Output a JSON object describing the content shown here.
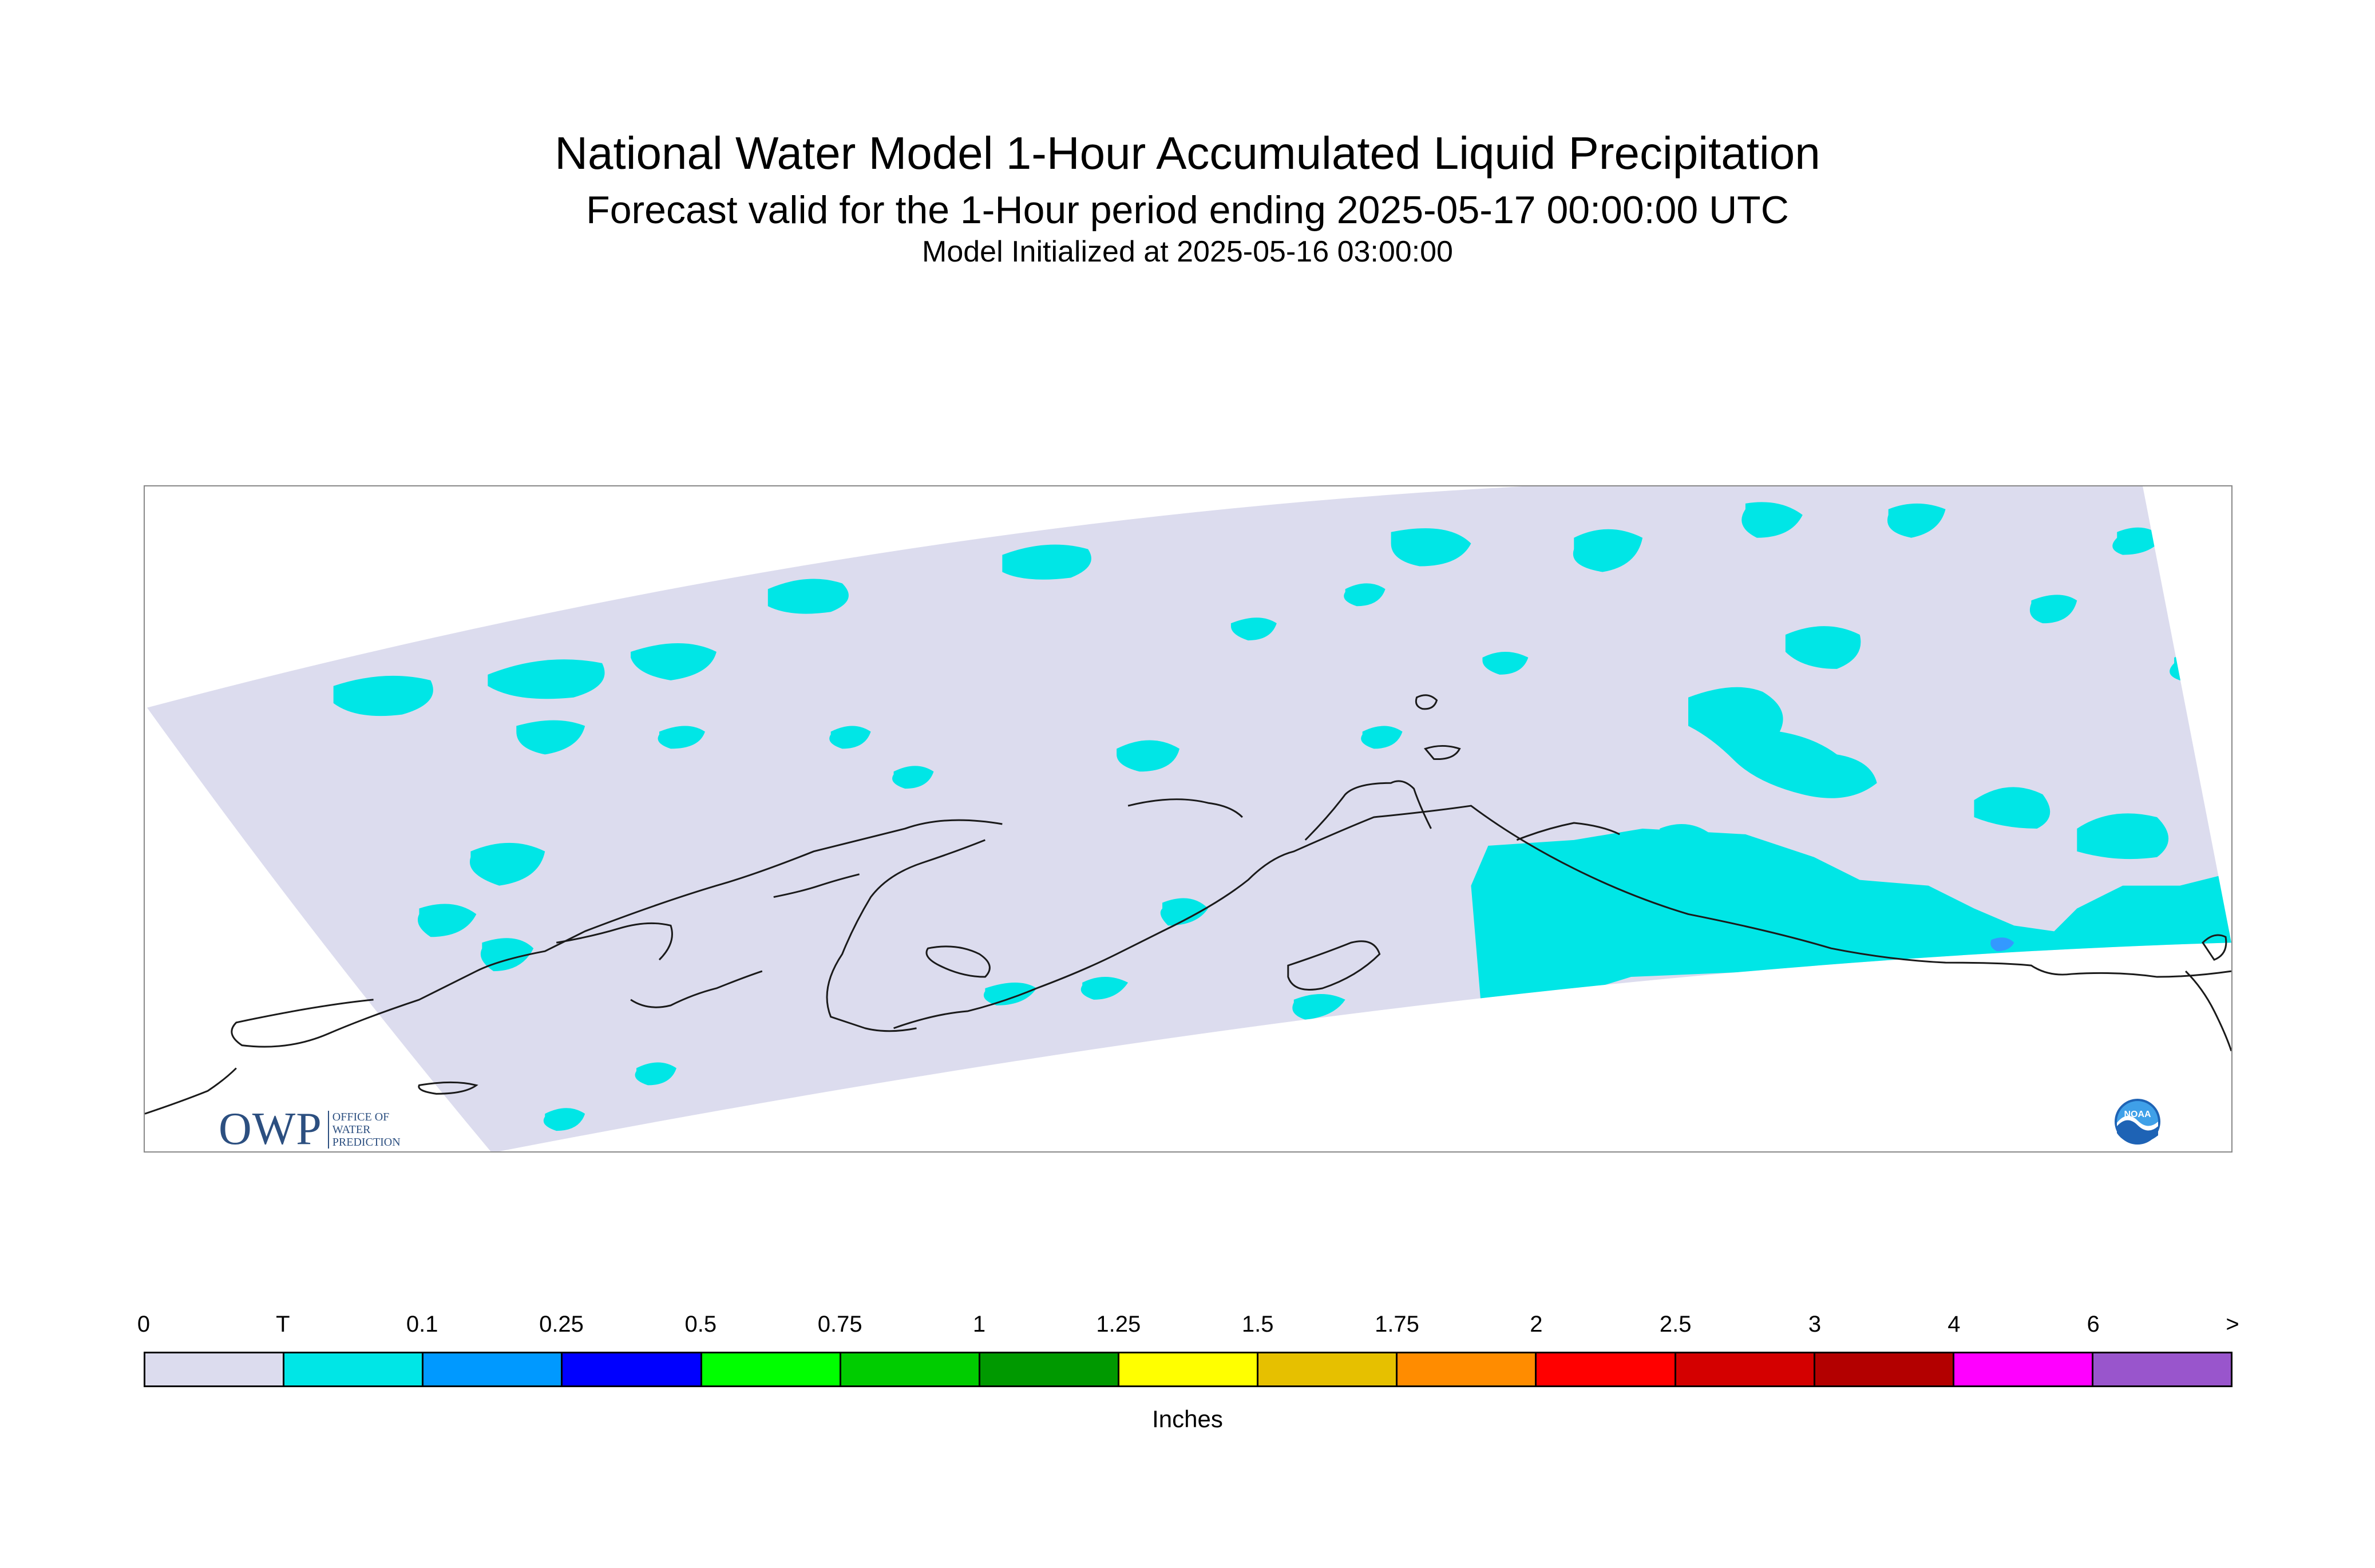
{
  "header": {
    "title": "National Water Model 1-Hour Accumulated Liquid Precipitation",
    "subtitle": "Forecast valid for the 1-Hour period ending 2025-05-17 00:00:00 UTC",
    "init": "Model Initialized at 2025-05-16 03:00:00"
  },
  "logos": {
    "owp_text": "OWP",
    "owp_sub": [
      "OFFICE OF",
      "WATER",
      "PREDICTION"
    ],
    "noaa_text": "NOAA"
  },
  "map": {
    "region": "Alaska",
    "domain_fill": "#dcdcee",
    "trace_color": "#00e6e6",
    "light_blue_color": "#3399ff",
    "coastline_color": "#1a1a1a"
  },
  "legend": {
    "units": "Inches",
    "ticks": [
      "0",
      "T",
      "0.1",
      "0.25",
      "0.5",
      "0.75",
      "1",
      "1.25",
      "1.5",
      "1.75",
      "2",
      "2.5",
      "3",
      "4",
      "6",
      ">"
    ],
    "colors": [
      "#dcdcee",
      "#00e6e6",
      "#0099ff",
      "#0000ff",
      "#00ff00",
      "#00cc00",
      "#009900",
      "#ffff00",
      "#e6c000",
      "#ff8c00",
      "#ff0000",
      "#d40000",
      "#b30000",
      "#ff00ff",
      "#9955cc"
    ]
  }
}
